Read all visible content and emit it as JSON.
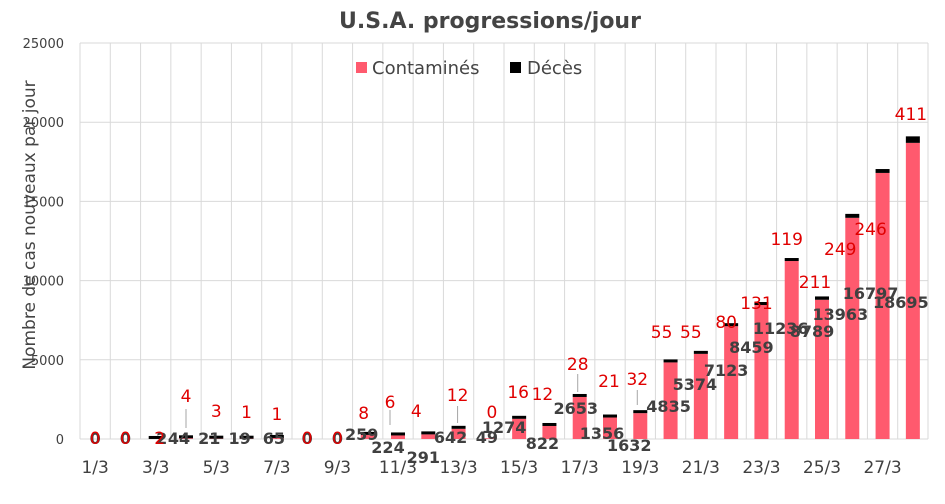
{
  "chart_data": {
    "type": "bar",
    "stacked": true,
    "title": "U.S.A. progressions/jour",
    "ylabel": "Nombre de cas nouveaux par jour",
    "xlabel": "",
    "ylim": [
      0,
      25000
    ],
    "yticks": [
      0,
      5000,
      10000,
      15000,
      20000,
      25000
    ],
    "grid": true,
    "legend_position": "top",
    "categories": [
      "1/3",
      "2/3",
      "3/3",
      "4/3",
      "5/3",
      "6/3",
      "7/3",
      "8/3",
      "9/3",
      "10/3",
      "11/3",
      "12/3",
      "13/3",
      "14/3",
      "15/3",
      "16/3",
      "17/3",
      "18/3",
      "19/3",
      "20/3",
      "21/3",
      "22/3",
      "23/3",
      "24/3",
      "25/3",
      "26/3",
      "27/3",
      "28/3"
    ],
    "x_tick_labels": [
      "1/3",
      "3/3",
      "5/3",
      "7/3",
      "9/3",
      "11/3",
      "13/3",
      "15/3",
      "17/3",
      "19/3",
      "21/3",
      "23/3",
      "25/3",
      "27/3"
    ],
    "series": [
      {
        "name": "Contaminés",
        "color": "#ff5a6e",
        "values": [
          0,
          0,
          2,
          44,
          21,
          19,
          65,
          0,
          0,
          259,
          224,
          291,
          642,
          49,
          1274,
          822,
          2653,
          1356,
          1632,
          4835,
          5374,
          7123,
          8459,
          11236,
          8789,
          13963,
          16797,
          18695
        ]
      },
      {
        "name": "Décès",
        "color": "#000000",
        "values": [
          0,
          0,
          2,
          4,
          3,
          1,
          1,
          0,
          0,
          8,
          6,
          4,
          12,
          0,
          16,
          12,
          28,
          21,
          32,
          55,
          55,
          80,
          131,
          119,
          211,
          249,
          246,
          411
        ]
      }
    ]
  }
}
